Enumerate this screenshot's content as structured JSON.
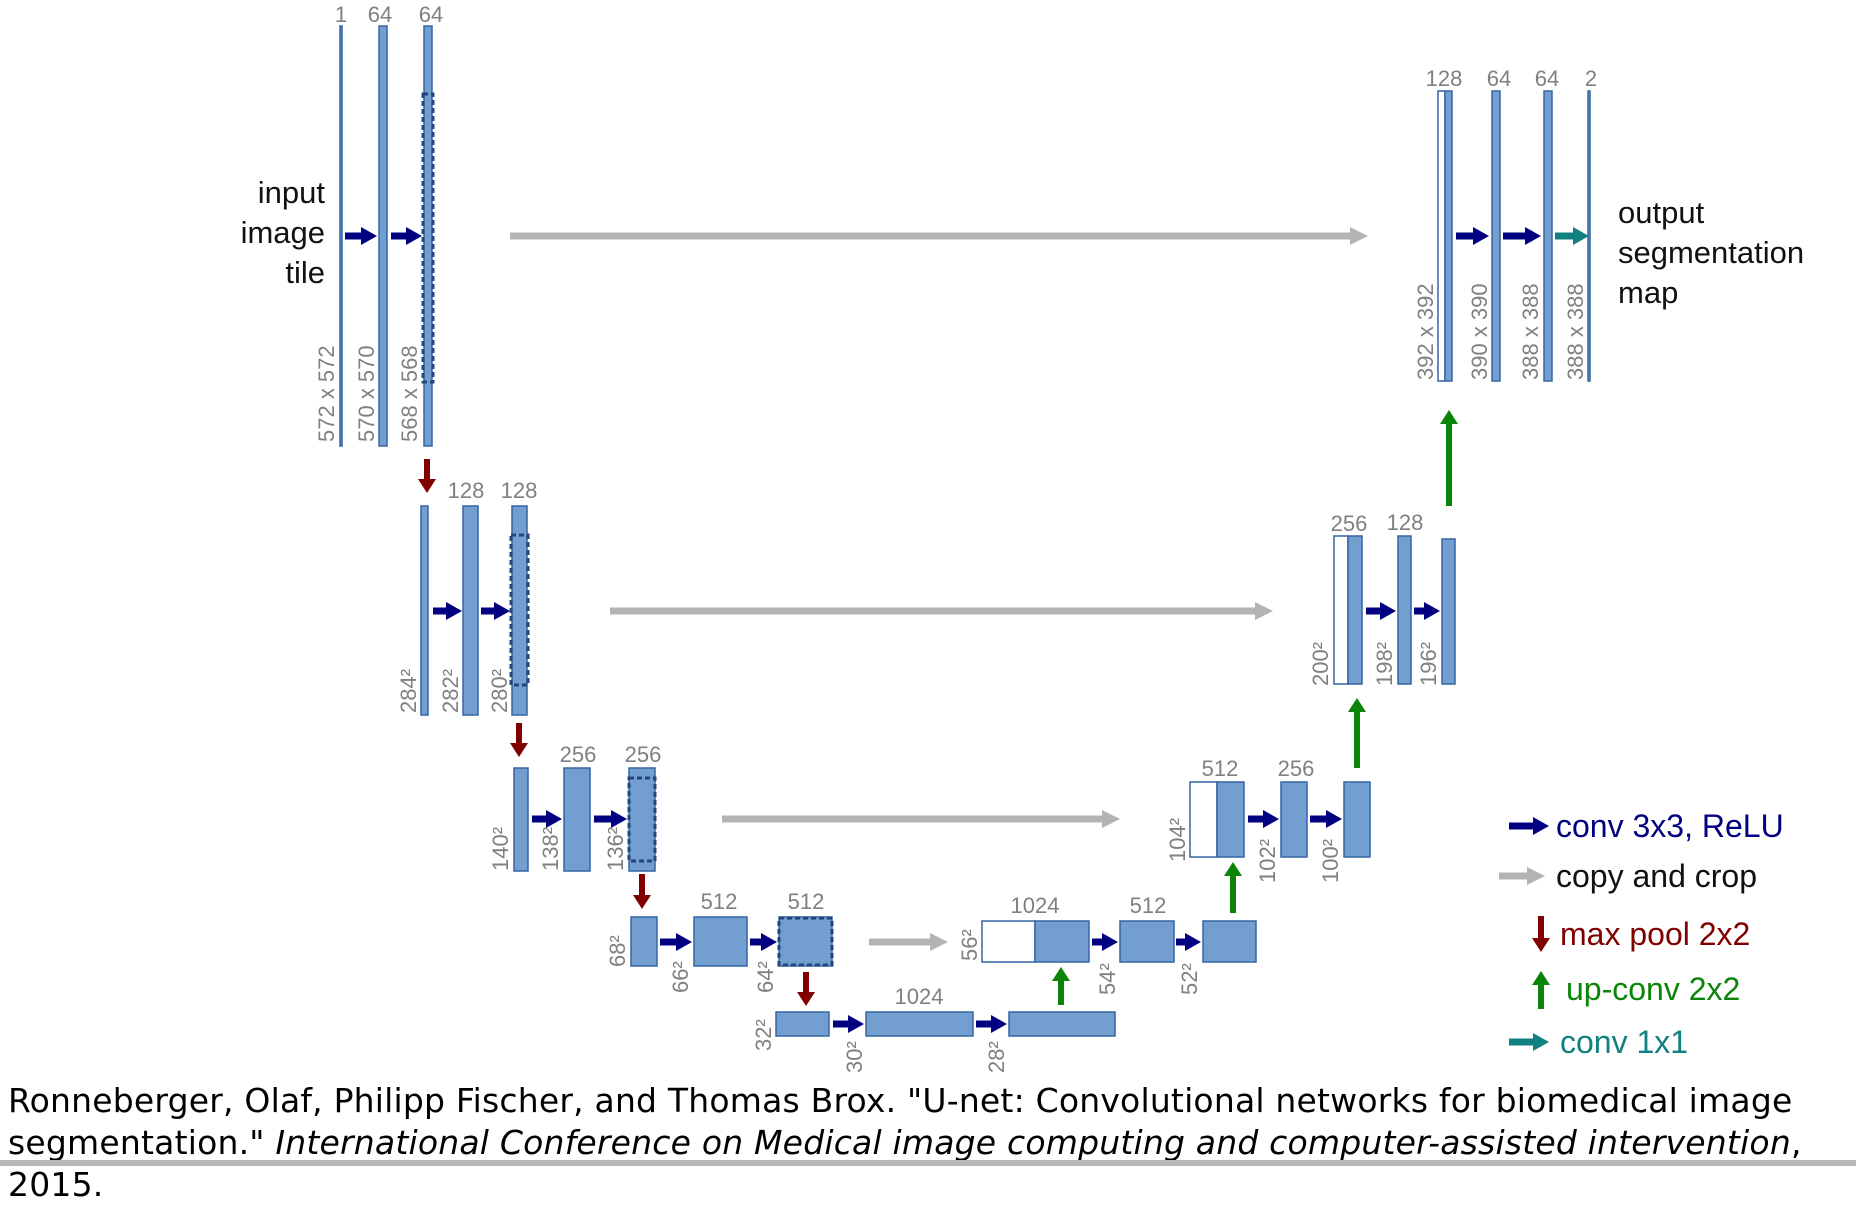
{
  "colors": {
    "block_fill": "#729fcf",
    "block_stroke": "#3465a4",
    "dim_text": "#808080",
    "conv_arrow": "#000080",
    "copy_arrow": "#b3b3b3",
    "pool_arrow": "#800000",
    "upconv_arrow": "#0a850a",
    "conv1x1_arrow": "#108080"
  },
  "input_label": [
    "input",
    "image",
    "tile"
  ],
  "output_label": [
    "output",
    "segmentation",
    "map"
  ],
  "channels": {
    "l1": [
      "1",
      "64",
      "64"
    ],
    "l2": [
      "128",
      "128"
    ],
    "l3": [
      "256",
      "256"
    ],
    "l4": [
      "512",
      "512"
    ],
    "l5": [
      "1024"
    ],
    "u4": [
      "1024",
      "512"
    ],
    "u3": [
      "512",
      "256"
    ],
    "u2": [
      "256",
      "128"
    ],
    "u1": [
      "128",
      "64",
      "64",
      "2"
    ]
  },
  "sizes": {
    "l1": [
      "572 x 572",
      "570 x 570",
      "568 x 568"
    ],
    "l2": [
      "284²",
      "282²",
      "280²"
    ],
    "l3": [
      "140²",
      "138²",
      "136²"
    ],
    "l4": [
      "68²",
      "66²",
      "64²"
    ],
    "l5": [
      "32²",
      "30²",
      "28²"
    ],
    "u4": [
      "56²",
      "54²",
      "52²"
    ],
    "u3": [
      "104²",
      "102²",
      "100²"
    ],
    "u2": [
      "200²",
      "198²",
      "196²"
    ],
    "u1": [
      "392 x 392",
      "390 x 390",
      "388 x 388",
      "388 x 388"
    ]
  },
  "legend": [
    {
      "label": "conv 3x3, ReLU",
      "kind": "conv"
    },
    {
      "label": "copy and crop",
      "kind": "copy"
    },
    {
      "label": "max pool 2x2",
      "kind": "pool"
    },
    {
      "label": "up-conv 2x2",
      "kind": "upconv"
    },
    {
      "label": "conv 1x1",
      "kind": "conv1x1"
    }
  ],
  "citation": {
    "text": "Ronneberger, Olaf, Philipp Fischer, and Thomas Brox. \"U-net: Convolutional networks for biomedical image segmentation.\" ",
    "venue": "International Conference on Medical image computing and computer-assisted intervention",
    "year": ", 2015."
  }
}
